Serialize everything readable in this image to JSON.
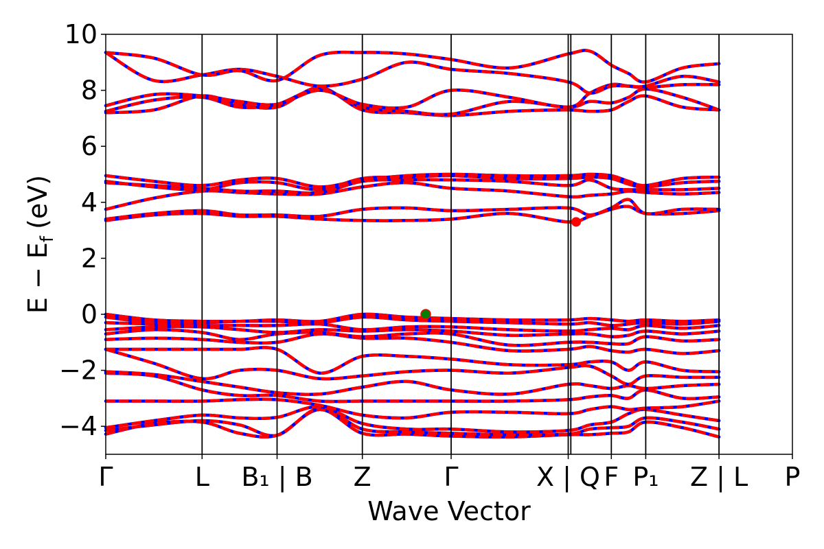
{
  "chart_data": {
    "type": "line",
    "title": "",
    "xlabel": "Wave Vector",
    "ylabel_main": "E − E",
    "ylabel_sub": "f",
    "ylabel_unit": "(eV)",
    "ylim": [
      -5,
      10
    ],
    "yticks": [
      -4,
      -2,
      0,
      2,
      4,
      6,
      8,
      10
    ],
    "xlim": [
      0,
      1
    ],
    "kpoints": [
      {
        "x": 0.0,
        "label": "Γ"
      },
      {
        "x": 0.1403,
        "label": "L"
      },
      {
        "x": 0.2495,
        "label": "B₁ | B"
      },
      {
        "x": 0.3737,
        "label": "Z"
      },
      {
        "x": 0.503,
        "label": "Γ"
      },
      {
        "x": 0.6735,
        "label": "X | Q"
      },
      {
        "x": 0.7363,
        "label": "F"
      },
      {
        "x": 0.7864,
        "label": "P₁"
      },
      {
        "x": 0.8931,
        "label": "Z | L"
      },
      {
        "x": 1.0,
        "label": "P"
      }
    ],
    "extra_lines": [
      0.6773
    ],
    "grid": false,
    "line_colors": {
      "spin_up": "#0000ff",
      "spin_down": "#ff0000"
    },
    "vbm": {
      "x": 0.466,
      "y": 0.0,
      "color": "#008000"
    },
    "cbm": {
      "x": 0.685,
      "y": 3.3,
      "color": "#ff0000"
    },
    "bands": [
      {
        "y": [
          -4.28,
          -3.9,
          -3.85,
          -4.25,
          -4.32,
          -3.4,
          -4.25,
          -4.28,
          -4.35,
          -4.38,
          -4.3,
          -4.3,
          -4.25,
          -4.2,
          -3.85,
          -4.05,
          -4.38
        ]
      },
      {
        "y": [
          -4.15,
          -3.95,
          -3.8,
          -3.95,
          -4.32,
          -3.35,
          -4.1,
          -4.2,
          -4.25,
          -4.3,
          -4.28,
          -4.1,
          -4.05,
          -4.0,
          -3.7,
          -3.85,
          -4.1
        ]
      },
      {
        "y": [
          -4.05,
          -3.8,
          -3.6,
          -3.7,
          -3.68,
          -3.3,
          -3.9,
          -4.1,
          -4.1,
          -4.2,
          -4.15,
          -3.95,
          -3.85,
          -3.55,
          -3.4,
          -3.6,
          -3.8
        ]
      },
      {
        "y": [
          -3.1,
          -3.1,
          -3.1,
          -3.05,
          -3.05,
          -3.25,
          -3.6,
          -3.7,
          -3.5,
          -3.5,
          -3.55,
          -3.4,
          -3.3,
          -3.4,
          -3.35,
          -3.3,
          -3.1
        ]
      },
      {
        "y": [
          -2.1,
          -2.2,
          -2.7,
          -2.9,
          -2.9,
          -3.1,
          -3.1,
          -3.1,
          -3.1,
          -3.1,
          -3.05,
          -2.95,
          -2.9,
          -3.0,
          -2.7,
          -3.0,
          -2.95
        ]
      },
      {
        "y": [
          -2.05,
          -2.15,
          -2.4,
          -2.6,
          -2.8,
          -2.85,
          -2.6,
          -2.4,
          -2.7,
          -2.85,
          -2.5,
          -2.55,
          -2.65,
          -2.55,
          -2.65,
          -2.55,
          -2.5
        ]
      },
      {
        "y": [
          -1.25,
          -1.75,
          -2.3,
          -2.0,
          -2.0,
          -2.3,
          -2.2,
          -2.05,
          -2.0,
          -2.1,
          -1.9,
          -1.85,
          -2.2,
          -2.5,
          -2.2,
          -2.25,
          -2.25
        ]
      },
      {
        "y": [
          -1.25,
          -1.25,
          -1.25,
          -1.25,
          -1.25,
          -2.1,
          -1.5,
          -1.5,
          -1.6,
          -1.8,
          -1.8,
          -1.7,
          -1.7,
          -2.0,
          -1.7,
          -2.0,
          -2.05
        ]
      },
      {
        "y": [
          -0.9,
          -0.85,
          -0.9,
          -1.0,
          -1.0,
          -0.7,
          -0.85,
          -0.85,
          -1.0,
          -1.3,
          -1.25,
          -1.15,
          -1.3,
          -1.35,
          -1.25,
          -1.4,
          -1.3
        ]
      },
      {
        "y": [
          -0.7,
          -0.55,
          -0.65,
          -0.9,
          -0.7,
          -0.65,
          -0.8,
          -0.7,
          -0.7,
          -1.1,
          -1.0,
          -1.0,
          -1.05,
          -1.05,
          -0.8,
          -0.95,
          -0.9
        ]
      },
      {
        "y": [
          -0.55,
          -0.45,
          -0.45,
          -0.55,
          -0.65,
          -0.55,
          -0.6,
          -0.55,
          -0.6,
          -0.75,
          -0.7,
          -0.7,
          -0.8,
          -0.75,
          -0.6,
          -0.7,
          -0.6
        ]
      },
      {
        "y": [
          -0.3,
          -0.35,
          -0.4,
          -0.4,
          -0.4,
          -0.35,
          -0.55,
          -0.45,
          -0.45,
          -0.55,
          -0.6,
          -0.55,
          -0.5,
          -0.55,
          -0.4,
          -0.5,
          -0.4
        ]
      },
      {
        "y": [
          -0.1,
          -0.3,
          -0.3,
          -0.25,
          -0.25,
          -0.3,
          -0.1,
          -0.2,
          -0.25,
          -0.3,
          -0.35,
          -0.3,
          -0.4,
          -0.35,
          -0.3,
          -0.35,
          -0.25
        ]
      },
      {
        "y": [
          0.0,
          -0.2,
          -0.25,
          -0.25,
          -0.2,
          -0.25,
          0.0,
          -0.1,
          -0.15,
          -0.2,
          -0.2,
          -0.15,
          -0.2,
          -0.25,
          -0.2,
          -0.25,
          -0.2
        ]
      },
      {
        "y": [
          3.35,
          3.55,
          3.6,
          3.5,
          3.5,
          3.4,
          3.35,
          3.35,
          3.4,
          3.6,
          3.3,
          3.5,
          3.75,
          3.85,
          3.6,
          3.6,
          3.7
        ]
      },
      {
        "y": [
          3.4,
          3.6,
          3.7,
          3.55,
          3.55,
          3.5,
          3.75,
          3.8,
          3.7,
          3.75,
          3.8,
          3.55,
          3.8,
          4.1,
          3.6,
          3.75,
          3.75
        ]
      },
      {
        "y": [
          3.75,
          4.15,
          4.4,
          4.35,
          4.3,
          4.3,
          4.55,
          4.7,
          4.5,
          4.4,
          4.2,
          4.25,
          4.3,
          4.4,
          4.35,
          4.3,
          4.35
        ]
      },
      {
        "y": [
          4.7,
          4.6,
          4.5,
          4.4,
          4.4,
          4.35,
          4.75,
          4.8,
          4.8,
          4.75,
          4.6,
          4.8,
          4.5,
          4.45,
          4.45,
          4.45,
          4.5
        ]
      },
      {
        "y": [
          4.75,
          4.55,
          4.45,
          4.7,
          4.7,
          4.45,
          4.85,
          4.9,
          4.95,
          4.85,
          4.85,
          4.9,
          4.85,
          4.65,
          4.55,
          4.7,
          4.75
        ]
      },
      {
        "y": [
          4.95,
          4.75,
          4.6,
          4.8,
          4.85,
          4.55,
          4.8,
          4.95,
          5.0,
          4.95,
          4.95,
          5.0,
          4.95,
          4.75,
          4.6,
          4.85,
          4.9
        ]
      },
      {
        "y": [
          7.2,
          7.3,
          7.8,
          7.5,
          7.4,
          8.1,
          7.3,
          7.2,
          7.1,
          7.25,
          7.3,
          7.25,
          7.3,
          7.6,
          7.8,
          7.4,
          7.3
        ]
      },
      {
        "y": [
          7.25,
          7.65,
          7.75,
          7.4,
          7.5,
          8.05,
          7.4,
          7.25,
          7.15,
          7.6,
          7.4,
          7.6,
          7.55,
          7.75,
          8.05,
          7.75,
          7.3
        ]
      },
      {
        "y": [
          7.45,
          7.85,
          7.8,
          7.6,
          7.5,
          8.0,
          7.5,
          7.4,
          8.0,
          7.75,
          7.4,
          7.9,
          8.2,
          8.15,
          8.1,
          8.2,
          8.2
        ]
      },
      {
        "y": [
          9.35,
          8.35,
          8.55,
          8.75,
          8.5,
          8.15,
          8.4,
          9.0,
          8.75,
          8.6,
          8.3,
          7.9,
          8.15,
          8.15,
          8.15,
          8.5,
          8.3
        ]
      },
      {
        "y": [
          9.35,
          9.15,
          8.55,
          8.7,
          8.35,
          9.25,
          9.35,
          9.3,
          9.1,
          8.8,
          9.3,
          9.4,
          8.9,
          8.6,
          8.3,
          8.8,
          8.95
        ]
      }
    ]
  }
}
